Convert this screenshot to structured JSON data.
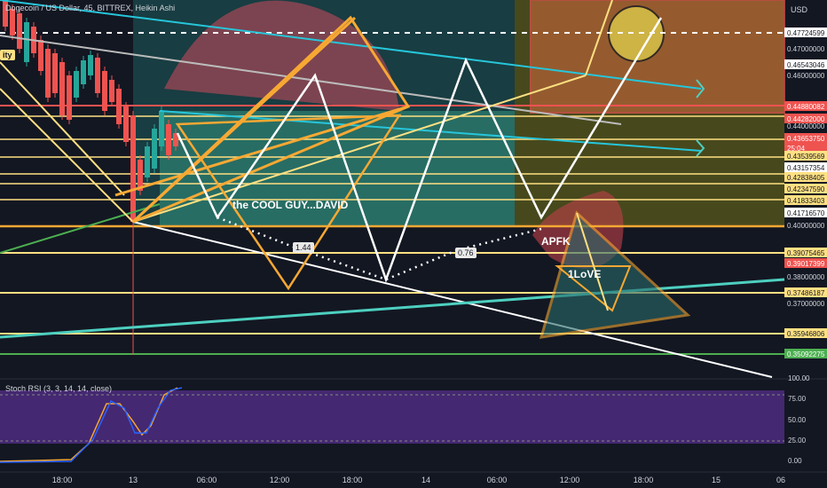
{
  "header": {
    "symbol_text": "Dogecoin / US Dollar, 45, BITTREX, Heikin Ashi",
    "currency": "USD",
    "left_tag": "ity"
  },
  "chart_data": {
    "type": "candlestick",
    "title": "Dogecoin / US Dollar, 45, BITTREX, Heikin Ashi",
    "x_ticks": [
      "18:00",
      "13",
      "06:00",
      "12:00",
      "18:00",
      "14",
      "06:00",
      "12:00",
      "18:00",
      "15",
      "06"
    ],
    "price_axis_ticks": [
      0.47,
      0.46,
      0.44,
      0.4,
      0.38,
      0.37
    ],
    "price_labels": [
      {
        "value": "0.47724599",
        "style": "white"
      },
      {
        "value": "0.46543046",
        "style": "white"
      },
      {
        "value": "0.44880082",
        "style": "red"
      },
      {
        "value": "0.44282000",
        "style": "red"
      },
      {
        "value": "0.43653750",
        "style": "red"
      },
      {
        "value": "25:04",
        "style": "red-sub"
      },
      {
        "value": "0.43539569",
        "style": "yellow"
      },
      {
        "value": "0.43157354",
        "style": "white"
      },
      {
        "value": "0.42838405",
        "style": "yellow"
      },
      {
        "value": "0.42347590",
        "style": "yellow"
      },
      {
        "value": "0.41833403",
        "style": "yellow"
      },
      {
        "value": "0.41716570",
        "style": "white"
      },
      {
        "value": "0.39075465",
        "style": "yellow"
      },
      {
        "value": "0.39017399",
        "style": "red"
      },
      {
        "value": "0.37486187",
        "style": "yellow"
      },
      {
        "value": "0.35946806",
        "style": "yellow"
      },
      {
        "value": "0.35092275",
        "style": "green"
      }
    ],
    "annotations": {
      "label1": "the COOL GUY...DAVID",
      "label2": "APFK",
      "label3": "1LoVE",
      "ratio1": "1.44",
      "ratio2": "0.76"
    },
    "indicator": {
      "title": "Stoch RSI (3, 3, 14, 14, close)",
      "y_ticks": [
        100.0,
        75.0,
        50.0,
        25.0,
        0.0
      ],
      "band": [
        20,
        80
      ]
    }
  },
  "colors": {
    "bg": "#131722",
    "up": "#26a69a",
    "down": "#ef5350",
    "yellow": "#ffe082",
    "orange": "#f7a833",
    "cyan": "#26c6da",
    "purple": "#4a2a7a"
  }
}
